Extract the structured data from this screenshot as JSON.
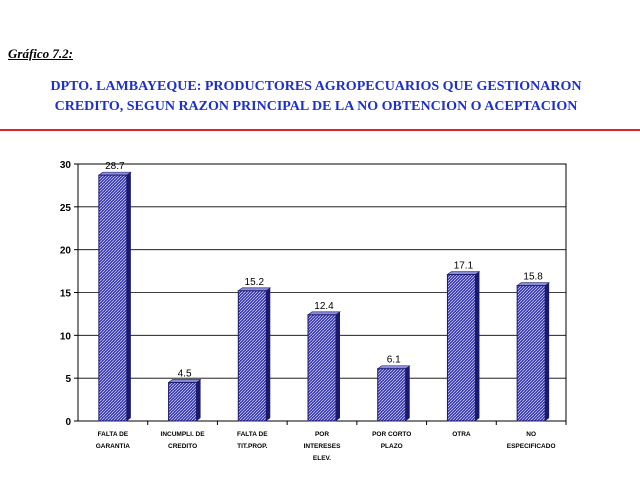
{
  "header": {
    "label": "Gráfico 7.2:",
    "title_line1": "DPTO. LAMBAYEQUE: PRODUCTORES AGROPECUARIOS QUE GESTIONARON",
    "title_line2": "CREDITO, SEGUN RAZON PRINCIPAL DE LA NO OBTENCION O ACEPTACION"
  },
  "colors": {
    "title": "#1d2fd0",
    "rule": "#e4202a",
    "bar_fill": "#3a3ab4",
    "bar_edge": "#1a1a6a"
  },
  "chart_data": {
    "type": "bar",
    "categories": [
      [
        "FALTA DE",
        "GARANTIA"
      ],
      [
        "INCUMPLI. DE",
        "CREDITO"
      ],
      [
        "FALTA DE",
        "TIT.PROP."
      ],
      [
        "POR",
        "INTERESES",
        "ELEV."
      ],
      [
        "POR CORTO",
        "PLAZO"
      ],
      [
        "OTRA"
      ],
      [
        "NO",
        "ESPECIFICADO"
      ]
    ],
    "values": [
      28.7,
      4.5,
      15.2,
      12.4,
      6.1,
      17.1,
      15.8
    ],
    "data_labels": [
      "28.7",
      "4.5",
      "15.2",
      "12.4",
      "6.1",
      "17.1",
      "15.8"
    ],
    "yticks": [
      0,
      5,
      10,
      15,
      20,
      25,
      30
    ],
    "ylim": [
      0,
      30
    ],
    "grid": true,
    "legend": "none"
  }
}
